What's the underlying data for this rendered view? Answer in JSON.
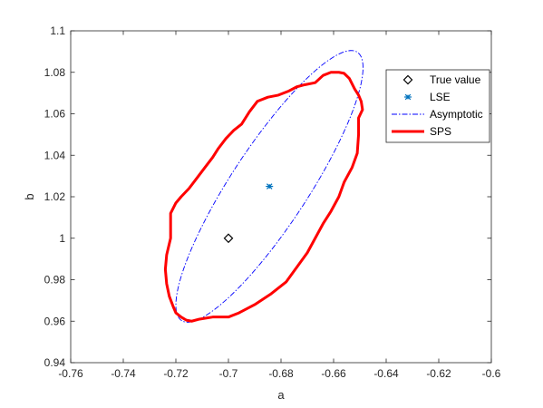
{
  "chart_data": {
    "type": "scatter",
    "xlabel": "a",
    "ylabel": "b",
    "xlim": [
      -0.76,
      -0.6
    ],
    "ylim": [
      0.94,
      1.1
    ],
    "grid": false,
    "legend_position": "top-right",
    "x_ticks": [
      -0.76,
      -0.74,
      -0.72,
      -0.7,
      -0.68,
      -0.66,
      -0.64,
      -0.62,
      -0.6
    ],
    "x_tick_labels": [
      "-0.76",
      "-0.74",
      "-0.72",
      "-0.7",
      "-0.68",
      "-0.66",
      "-0.64",
      "-0.62",
      "-0.6"
    ],
    "y_ticks": [
      0.94,
      0.96,
      0.98,
      1.0,
      1.02,
      1.04,
      1.06,
      1.08,
      1.1
    ],
    "y_tick_labels": [
      "0.94",
      "0.96",
      "0.98",
      "1",
      "1.02",
      "1.04",
      "1.06",
      "1.08",
      "1.1"
    ],
    "series": [
      {
        "name": "True value",
        "kind": "marker",
        "marker": "diamond",
        "color": "#000000",
        "points": [
          [
            -0.7,
            1.0
          ]
        ]
      },
      {
        "name": "LSE",
        "kind": "marker",
        "marker": "asterisk",
        "color": "#0072BD",
        "points": [
          [
            -0.6844,
            1.025
          ]
        ]
      },
      {
        "name": "Asymptotic",
        "kind": "dashdot-line",
        "color": "#0000FF",
        "ellipse": {
          "center": [
            -0.6844,
            1.025
          ],
          "half_width_a": 0.0356,
          "half_height_b": 0.0655,
          "correlation": 0.874
        }
      },
      {
        "name": "SPS",
        "kind": "thick-line",
        "color": "#FF0000",
        "points": [
          [
            -0.7,
            0.962
          ],
          [
            -0.696,
            0.964
          ],
          [
            -0.69,
            0.968
          ],
          [
            -0.684,
            0.973
          ],
          [
            -0.678,
            0.979
          ],
          [
            -0.674,
            0.986
          ],
          [
            -0.67,
            0.993
          ],
          [
            -0.667,
            1.0
          ],
          [
            -0.664,
            1.007
          ],
          [
            -0.661,
            1.013
          ],
          [
            -0.658,
            1.02
          ],
          [
            -0.656,
            1.027
          ],
          [
            -0.653,
            1.034
          ],
          [
            -0.651,
            1.041
          ],
          [
            -0.6505,
            1.05
          ],
          [
            -0.6505,
            1.058
          ],
          [
            -0.649,
            1.062
          ],
          [
            -0.6495,
            1.066
          ],
          [
            -0.6505,
            1.069
          ],
          [
            -0.652,
            1.072
          ],
          [
            -0.654,
            1.077
          ],
          [
            -0.656,
            1.0795
          ],
          [
            -0.658,
            1.08
          ],
          [
            -0.661,
            1.08
          ],
          [
            -0.664,
            1.0785
          ],
          [
            -0.667,
            1.075
          ],
          [
            -0.671,
            1.074
          ],
          [
            -0.674,
            1.073
          ],
          [
            -0.677,
            1.071
          ],
          [
            -0.681,
            1.069
          ],
          [
            -0.685,
            1.068
          ],
          [
            -0.689,
            1.066
          ],
          [
            -0.692,
            1.061
          ],
          [
            -0.695,
            1.055
          ],
          [
            -0.698,
            1.052
          ],
          [
            -0.701,
            1.048
          ],
          [
            -0.704,
            1.043
          ],
          [
            -0.706,
            1.039
          ],
          [
            -0.709,
            1.034
          ],
          [
            -0.712,
            1.029
          ],
          [
            -0.715,
            1.024
          ],
          [
            -0.718,
            1.02
          ],
          [
            -0.72,
            1.017
          ],
          [
            -0.722,
            1.012
          ],
          [
            -0.722,
            1.0
          ],
          [
            -0.7235,
            0.992
          ],
          [
            -0.724,
            0.985
          ],
          [
            -0.7235,
            0.978
          ],
          [
            -0.7225,
            0.972
          ],
          [
            -0.721,
            0.967
          ],
          [
            -0.72,
            0.964
          ],
          [
            -0.718,
            0.962
          ],
          [
            -0.716,
            0.9605
          ],
          [
            -0.714,
            0.96
          ],
          [
            -0.711,
            0.961
          ],
          [
            -0.706,
            0.962
          ]
        ]
      }
    ]
  }
}
